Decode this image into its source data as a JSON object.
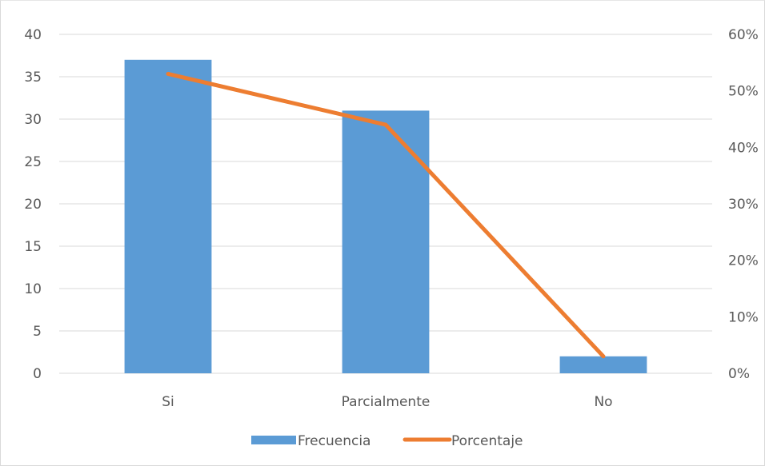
{
  "chart_data": {
    "type": "bar",
    "title": "",
    "categories": [
      "Si",
      "Parcialmente",
      "No"
    ],
    "series": [
      {
        "name": "Frecuencia",
        "kind": "bar",
        "axis": "left",
        "values": [
          37,
          31,
          2
        ],
        "color": "#5b9bd5"
      },
      {
        "name": "Porcentaje",
        "kind": "line",
        "axis": "right",
        "values": [
          0.53,
          0.44,
          0.03
        ],
        "color": "#ed7d31"
      }
    ],
    "y_left": {
      "min": 0,
      "max": 40,
      "step": 5,
      "ticks": [
        "0",
        "5",
        "10",
        "15",
        "20",
        "25",
        "30",
        "35",
        "40"
      ]
    },
    "y_right": {
      "min": 0,
      "max": 0.6,
      "step": 0.1,
      "ticks": [
        "0%",
        "10%",
        "20%",
        "30%",
        "40%",
        "50%",
        "60%"
      ]
    },
    "grid": true,
    "legend": "bottom",
    "gridline_color": "#d9d9d9"
  }
}
